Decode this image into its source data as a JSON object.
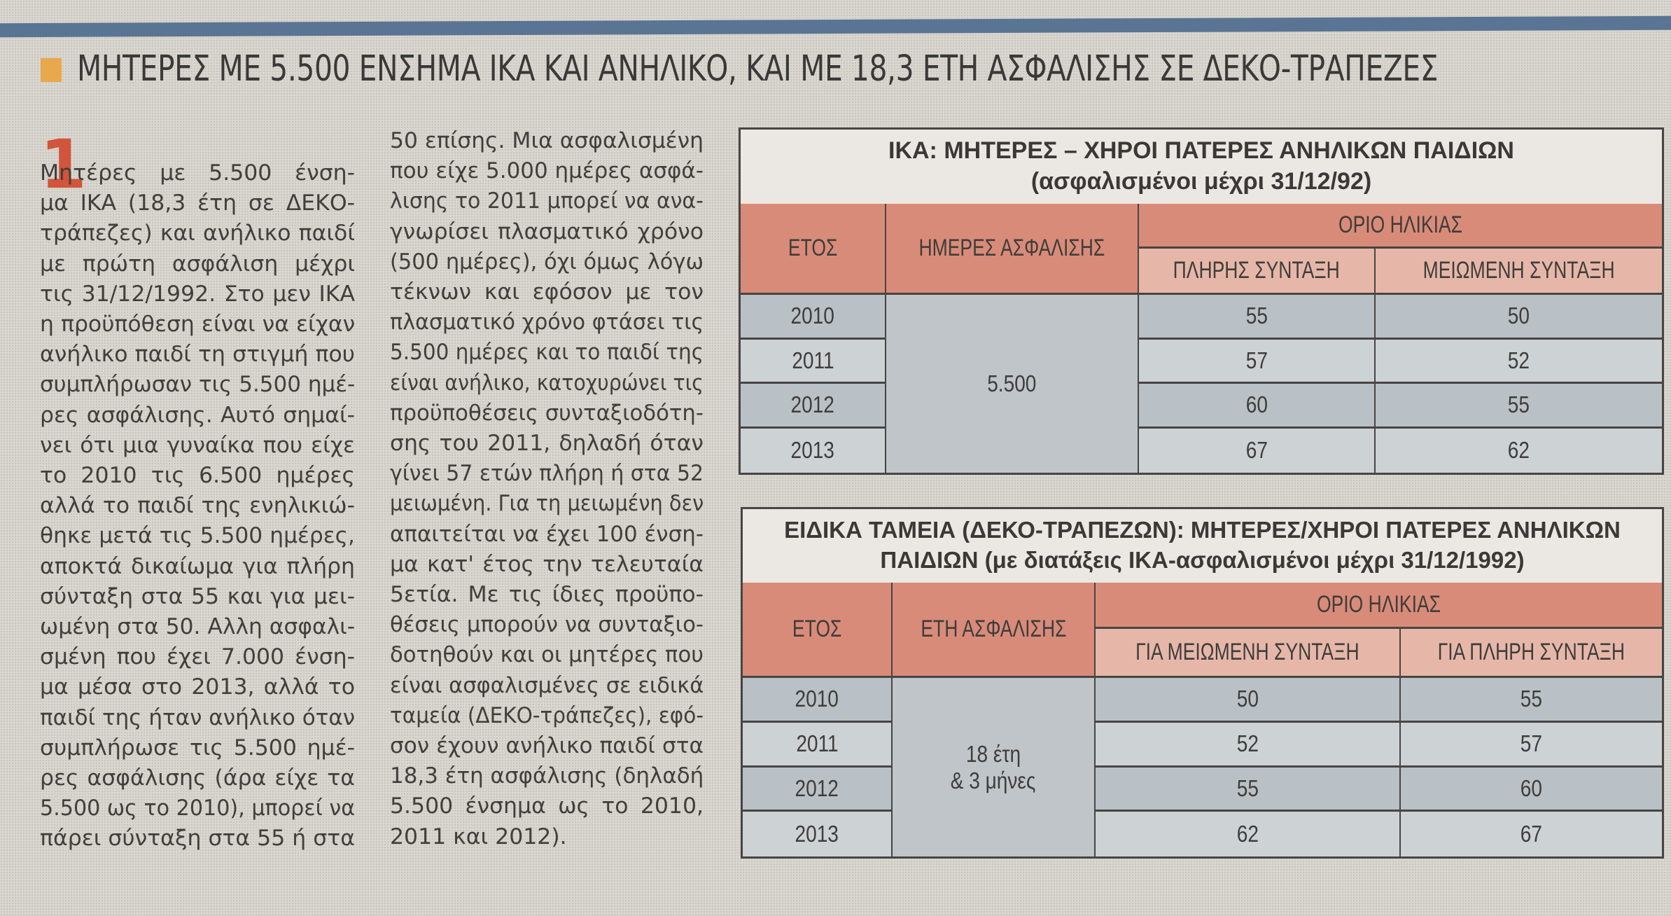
{
  "headline": {
    "bullet_color": "#e8a84c",
    "text": "ΜΗΤΕΡΕΣ ΜΕ 5.500 ΕΝΣΗΜΑ ΙΚΑ ΚΑΙ ΑΝΗΛΙΚΟ, ΚΑΙ ΜΕ 18,3 ΕΤΗ ΑΣΦΑΛΙΣΗΣ ΣΕ ΔΕΚΟ-ΤΡΑΠΕΖΕΣ"
  },
  "article": {
    "dropcap": "1",
    "dropcap_color": "#d0553a",
    "column1_lines": [
      "Μητέρες με 5.500 ένση-",
      "μα ΙΚΑ (18,3 έτη σε ΔΕΚΟ-",
      "τράπεζες) και ανήλικο παιδί",
      "με πρώτη ασφάλιση μέχρι",
      "τις 31/12/1992. Στο μεν ΙΚΑ",
      "η προϋπόθεση είναι να είχαν",
      "ανήλικο παιδί τη στιγμή που",
      "συμπλήρωσαν τις 5.500 ημέ-",
      "ρες ασφάλισης. Αυτό σημαί-",
      "νει ότι μια γυναίκα που είχε",
      "το 2010 τις 6.500 ημέρες",
      "αλλά το παιδί της ενηλικιώ-",
      "θηκε μετά τις 5.500 ημέρες,",
      "αποκτά δικαίωμα για πλήρη",
      "σύνταξη στα 55 και για μει-",
      "ωμένη στα 50. Αλλη ασφαλι-",
      "σμένη που έχει 7.000 ένση-",
      "μα μέσα στο 2013, αλλά το",
      "παιδί της ήταν ανήλικο όταν",
      "συμπλήρωσε τις 5.500 ημέ-",
      "ρες ασφάλισης (άρα είχε τα",
      "5.500 ως το 2010), μπορεί να",
      "πάρει σύνταξη στα 55 ή στα"
    ],
    "column2_lines": [
      "50 επίσης. Μια ασφαλισμένη",
      "που είχε 5.000 ημέρες ασφά-",
      "λισης το 2011 μπορεί να ανα-",
      "γνωρίσει πλασματικό χρόνο",
      "(500 ημέρες), όχι όμως λόγω",
      "τέκνων και εφόσον με τον",
      "πλασματικό χρόνο φτάσει τις",
      "5.500 ημέρες και το παιδί της",
      "είναι ανήλικο, κατοχυρώνει τις",
      "προϋποθέσεις συνταξιοδότη-",
      "σης του 2011, δηλαδή όταν",
      "γίνει 57 ετών πλήρη ή στα 52",
      "μειωμένη. Για τη μειωμένη δεν",
      "απαιτείται να έχει 100 ένση-",
      "μα κατ' έτος την τελευταία",
      "5ετία. Με τις ίδιες προϋπο-",
      "θέσεις μπορούν να συνταξιο-",
      "δοτηθούν και οι μητέρες που",
      "είναι ασφαλισμένες σε ειδικά",
      "ταμεία (ΔΕΚΟ-τράπεζες), εφό-",
      "σον έχουν ανήλικο παιδί στα",
      "18,3 έτη ασφάλισης (δηλαδή",
      "5.500 ένσημα ως το 2010,",
      "2011 και 2012)."
    ]
  },
  "table_ika": {
    "title_line1": "ΙΚΑ: ΜΗΤΕΡΕΣ – ΧΗΡΟΙ ΠΑΤΕΡΕΣ ΑΝΗΛΙΚΩΝ ΠΑΙΔΙΩΝ",
    "title_line2": "(ασφαλισμένοι μέχρι 31/12/92)",
    "headers": {
      "year": "ΕΤΟΣ",
      "insurance": "ΗΜΕΡΕΣ ΑΣΦΑΛΙΣΗΣ",
      "age_limit": "ΟΡΙΟ ΗΛΙΚΙΑΣ",
      "sub1": "ΠΛΗΡΗΣ ΣΥΝΤΑΞΗ",
      "sub2": "ΜΕΙΩΜΕΝΗ ΣΥΝΤΑΞΗ"
    },
    "insurance_value": "5.500",
    "rows": [
      {
        "year": "2010",
        "v1": "55",
        "v2": "50"
      },
      {
        "year": "2011",
        "v1": "57",
        "v2": "52"
      },
      {
        "year": "2012",
        "v1": "60",
        "v2": "55"
      },
      {
        "year": "2013",
        "v1": "67",
        "v2": "62"
      }
    ]
  },
  "table_deko": {
    "title_line1": "ΕΙΔΙΚΑ ΤΑΜΕΙΑ (ΔΕΚΟ-ΤΡΑΠΕΖΩΝ): ΜΗΤΕΡΕΣ/ΧΗΡΟΙ ΠΑΤΕΡΕΣ ΑΝΗΛΙΚΩΝ",
    "title_line2": "ΠΑΙΔΙΩΝ (με διατάξεις ΙΚΑ-ασφαλισμένοι μέχρι 31/12/1992)",
    "headers": {
      "year": "ΕΤΟΣ",
      "insurance": "ΕΤΗ ΑΣΦΑΛΙΣΗΣ",
      "age_limit": "ΟΡΙΟ ΗΛΙΚΙΑΣ",
      "sub1": "ΓΙΑ ΜΕΙΩΜΕΝΗ ΣΥΝΤΑΞΗ",
      "sub2": "ΓΙΑ ΠΛΗΡΗ ΣΥΝΤΑΞΗ"
    },
    "insurance_value_line1": "18 έτη",
    "insurance_value_line2": "& 3 μήνες",
    "rows": [
      {
        "year": "2010",
        "v1": "50",
        "v2": "55"
      },
      {
        "year": "2011",
        "v1": "52",
        "v2": "57"
      },
      {
        "year": "2012",
        "v1": "55",
        "v2": "60"
      },
      {
        "year": "2013",
        "v1": "62",
        "v2": "67"
      }
    ]
  },
  "colors": {
    "rule_blue": "#5a7494",
    "header_salmon": "#d98b79",
    "subheader_pink": "#e6b7a8",
    "row_grey_blue": "#b9c1c6"
  }
}
